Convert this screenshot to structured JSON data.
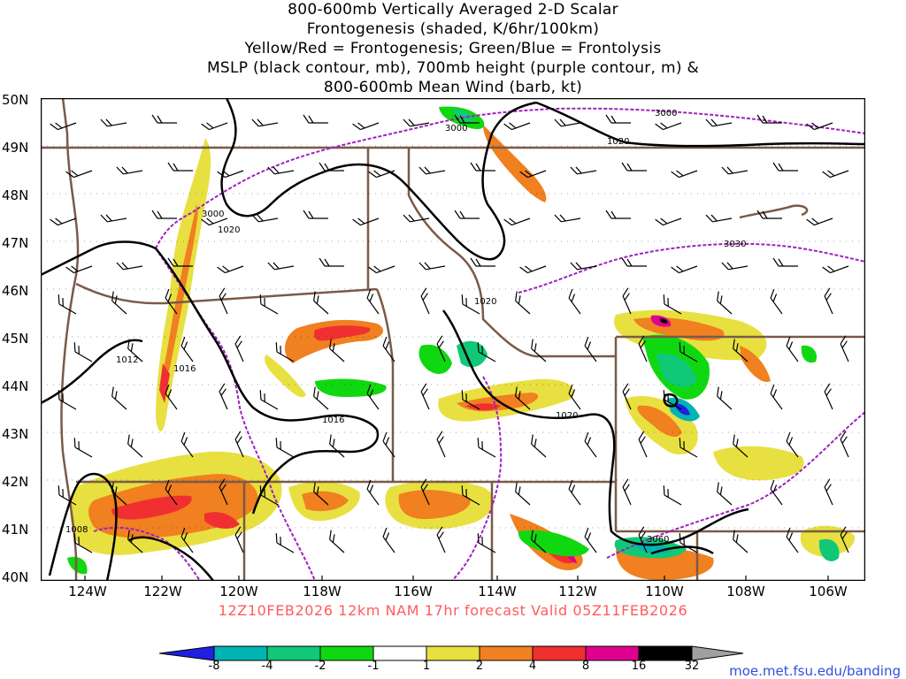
{
  "title_lines": [
    "800-600mb Vertically Averaged 2-D Scalar",
    "Frontogenesis (shaded, K/6hr/100km)",
    "Yellow/Red = Frontogenesis;  Green/Blue = Frontolysis",
    "MSLP (black contour, mb), 700mb height (purple contour, m) &",
    "800-600mb Mean Wind (barb, kt)"
  ],
  "lat_labels": [
    "50N",
    "49N",
    "48N",
    "47N",
    "46N",
    "45N",
    "44N",
    "43N",
    "42N",
    "41N",
    "40N"
  ],
  "lon_labels": [
    "124W",
    "122W",
    "120W",
    "118W",
    "116W",
    "114W",
    "112W",
    "110W",
    "108W",
    "106W"
  ],
  "footer": "12Z10FEB2026 12km NAM 17hr forecast Valid 05Z11FEB2026",
  "credit": "moe.met.fsu.edu/banding",
  "colorbar": {
    "labels": [
      "-8",
      "-4",
      "-2",
      "-1",
      "1",
      "2",
      "4",
      "8",
      "16",
      "32"
    ],
    "colors": [
      "#2020e0",
      "#00b4b4",
      "#10c878",
      "#10d810",
      "#ffffff",
      "#e8e040",
      "#f08020",
      "#f03030",
      "#e00090",
      "#000000",
      "#a0a0a0"
    ]
  },
  "mslp_labels": [
    "1020",
    "1020",
    "1020",
    "1020",
    "1016",
    "1016",
    "1012",
    "1008"
  ],
  "height_labels": [
    "3000",
    "3000",
    "3000",
    "3030",
    "3060"
  ],
  "colors": {
    "mslp": "#000000",
    "height": "#a020c0",
    "borders": "#7a5a48",
    "footer": "#ff5b5b",
    "credit": "#3050e0"
  }
}
